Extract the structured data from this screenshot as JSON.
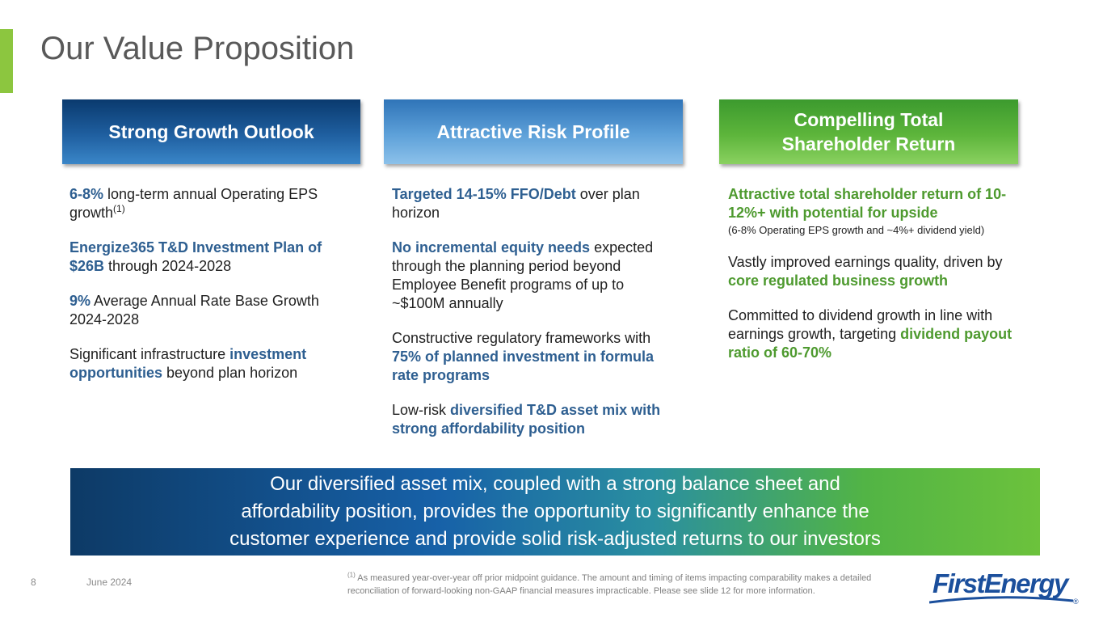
{
  "title": "Our Value Proposition",
  "columns": [
    {
      "header_line1": "Strong Growth Outlook",
      "items": [
        {
          "b1": "6-8%",
          "t1": " long-term annual Operating EPS growth",
          "sup": "(1)"
        },
        {
          "b1": "Energize365 T&D Investment Plan of $26B",
          "t1": " through 2024-2028"
        },
        {
          "b1": "9%",
          "t1": " Average Annual Rate Base Growth 2024-2028"
        },
        {
          "t0": "Significant infrastructure ",
          "b1": "investment opportunities",
          "t1": " beyond plan horizon"
        }
      ]
    },
    {
      "header_line1": "Attractive Risk Profile",
      "items": [
        {
          "b1": "Targeted 14-15% FFO/Debt",
          "t1": " over plan horizon"
        },
        {
          "b1": "No incremental equity needs",
          "t1": " expected through the planning period beyond Employee Benefit programs of up to ~$100M annually"
        },
        {
          "t0": "Constructive regulatory frameworks with ",
          "b1": "75% of planned investment in formula rate programs"
        },
        {
          "t0": "Low-risk ",
          "b1": "diversified T&D asset mix with strong affordability position"
        }
      ]
    },
    {
      "header_line1": "Compelling Total",
      "header_line2": "Shareholder Return",
      "items": [
        {
          "b1": "Attractive total shareholder return of 10-12%+ with potential for upside",
          "small": "(6-8% Operating EPS growth and ~4%+ dividend yield)"
        },
        {
          "t0": "Vastly improved earnings quality, driven by ",
          "b1": "core regulated business growth"
        },
        {
          "t0": "Committed to dividend growth in line with earnings growth, targeting ",
          "b1": "dividend payout ratio of 60-70%"
        }
      ]
    }
  ],
  "banner": {
    "line1": "Our diversified asset mix, coupled with a strong balance sheet and",
    "line2": "affordability position, provides the opportunity to significantly enhance the",
    "line3": "customer experience and provide solid risk-adjusted returns to our investors"
  },
  "footer": {
    "page_number": "8",
    "date": "June 2024",
    "footnote_marker": "(1)",
    "footnote_text": " As measured year-over-year off prior midpoint guidance. The amount and timing of items impacting comparability makes a detailed reconciliation of forward-looking non-GAAP financial measures impracticable. Please see slide 12 for more information."
  },
  "logo": {
    "text": "FirstEnergy",
    "mark": "®"
  },
  "colors": {
    "accent_green": "#8cc63f",
    "blue_text": "#2e5f91",
    "green_text": "#4e9a2f",
    "logo_blue": "#1b4f9c"
  }
}
